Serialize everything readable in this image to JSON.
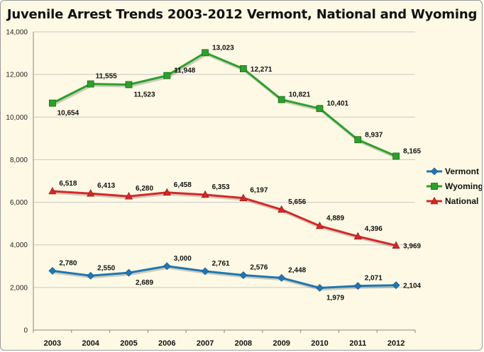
{
  "chart_data": {
    "type": "line",
    "title": "Juvenile Arrest Trends 2003-2012 Vermont, National and Wyoming",
    "xlabel": "",
    "ylabel": "",
    "categories": [
      "2003",
      "2004",
      "2005",
      "2006",
      "2007",
      "2008",
      "2009",
      "2010",
      "2011",
      "2012"
    ],
    "ylim": [
      0,
      14000
    ],
    "yticks": [
      0,
      2000,
      4000,
      6000,
      8000,
      10000,
      12000,
      14000
    ],
    "ytick_labels": [
      "0",
      "2,000",
      "4,000",
      "6,000",
      "8,000",
      "10,000",
      "12,000",
      "14,000"
    ],
    "grid": true,
    "legend_position": "right",
    "series": [
      {
        "name": "Vermont",
        "color": "#1f77b4",
        "marker": "diamond",
        "values": [
          2780,
          2550,
          2689,
          3000,
          2761,
          2576,
          2448,
          1979,
          2071,
          2104
        ],
        "labels": [
          "2,780",
          "2,550",
          "2,689",
          "3,000",
          "2,761",
          "2,576",
          "2,448",
          "1,979",
          "2,071",
          "2,104"
        ]
      },
      {
        "name": "Wyoming",
        "color": "#2ca02c",
        "marker": "square",
        "values": [
          10654,
          11555,
          11523,
          11948,
          13023,
          12271,
          10821,
          10401,
          8937,
          8165
        ],
        "labels": [
          "10,654",
          "11,555",
          "11,523",
          "11,948",
          "13,023",
          "12,271",
          "10,821",
          "10,401",
          "8,937",
          "8,165"
        ]
      },
      {
        "name": "National",
        "color": "#d62728",
        "marker": "triangle",
        "values": [
          6518,
          6413,
          6280,
          6458,
          6353,
          6197,
          5656,
          4889,
          4396,
          3969
        ],
        "labels": [
          "6,518",
          "6,413",
          "6,280",
          "6,458",
          "6,353",
          "6,197",
          "5,656",
          "4,889",
          "4,396",
          "3,969"
        ]
      }
    ]
  }
}
